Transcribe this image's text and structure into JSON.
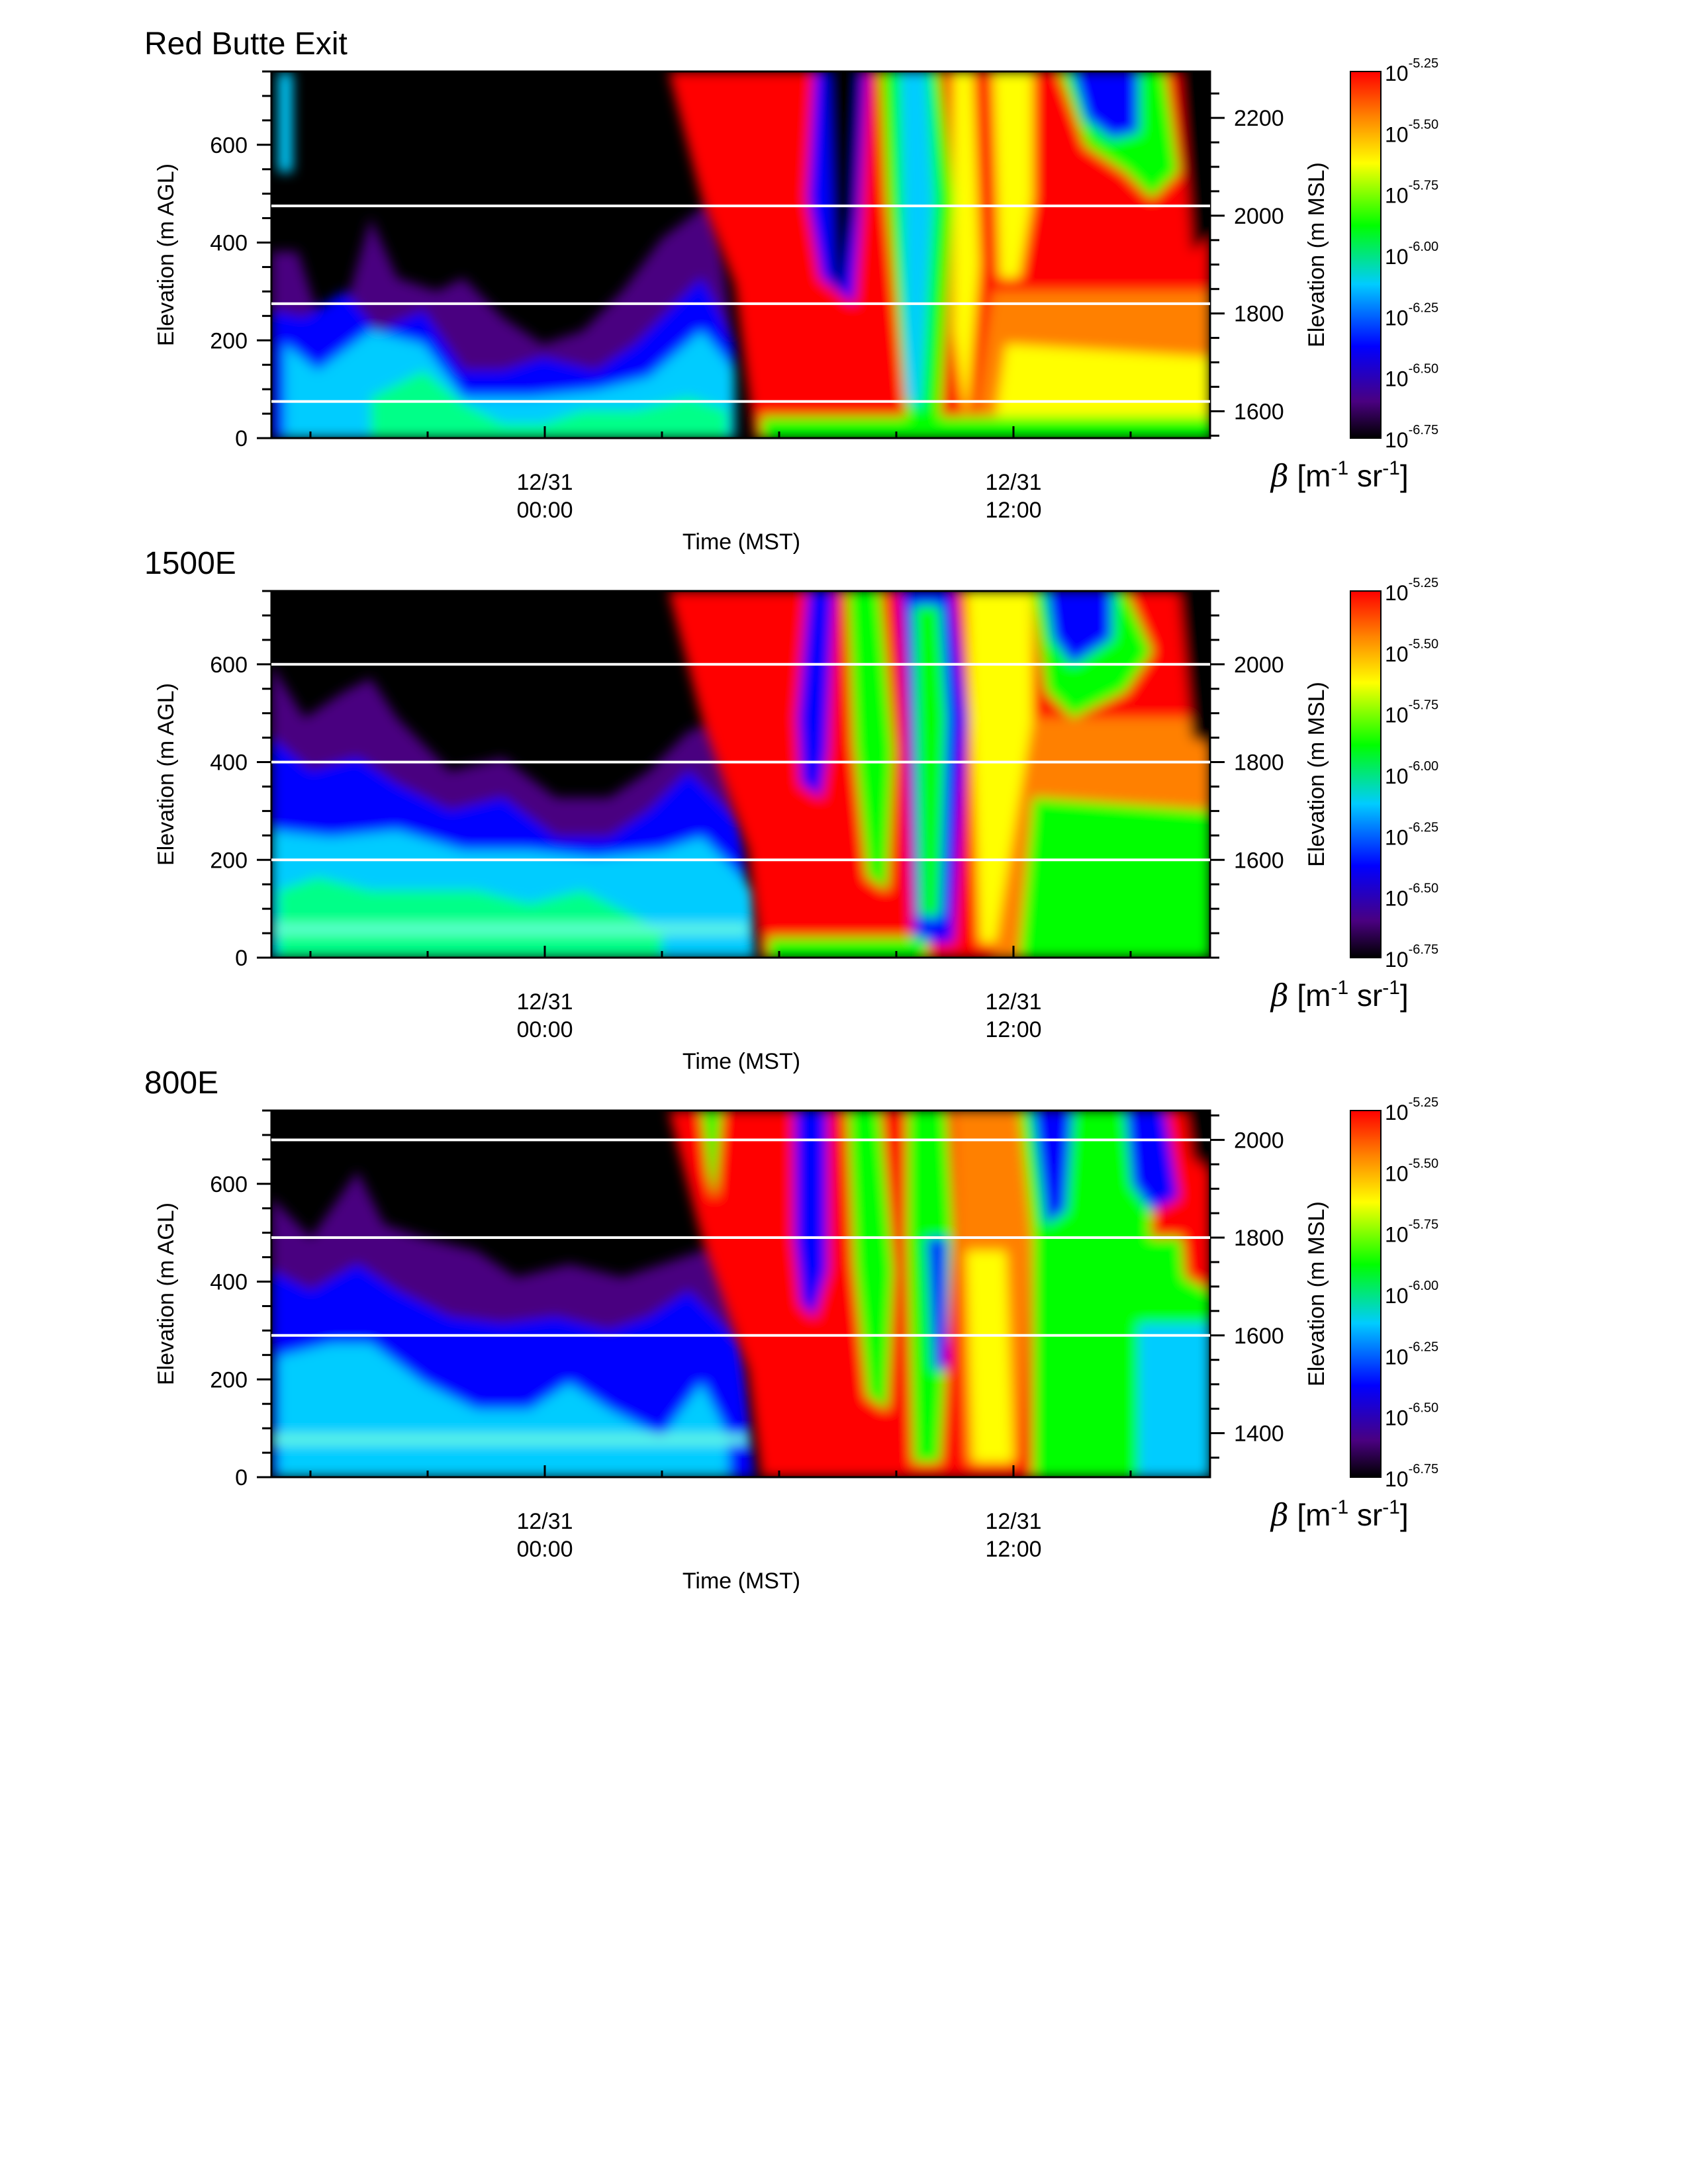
{
  "chart_data": [
    {
      "type": "heatmap",
      "title": "Red Butte Exit",
      "xlabel": "Time (MST)",
      "ylabel": "Elevation (m AGL)",
      "y2label": "Elevation (m MSL)",
      "ylim": [
        0,
        750
      ],
      "yticks": [
        0,
        200,
        400,
        600
      ],
      "y2lim": [
        1545,
        2295
      ],
      "y2ticks": [
        1600,
        1800,
        2000,
        2200
      ],
      "xticks": [
        {
          "line1": "12/31",
          "line2": "00:00"
        },
        {
          "line1": "12/31",
          "line2": "12:00"
        }
      ],
      "hlines_agl": [
        75,
        275,
        475
      ],
      "colorbar": {
        "label": "β [m-1 sr-1]",
        "ticks": [
          {
            "base": "10",
            "exp": "-5.25"
          },
          {
            "base": "10",
            "exp": "-5.50"
          },
          {
            "base": "10",
            "exp": "-5.75"
          },
          {
            "base": "10",
            "exp": "-6.00"
          },
          {
            "base": "10",
            "exp": "-6.25"
          },
          {
            "base": "10",
            "exp": "-6.50"
          },
          {
            "base": "10",
            "exp": "-6.75"
          }
        ]
      }
    },
    {
      "type": "heatmap",
      "title": "1500E",
      "xlabel": "Time (MST)",
      "ylabel": "Elevation (m AGL)",
      "y2label": "Elevation (m MSL)",
      "ylim": [
        0,
        750
      ],
      "yticks": [
        0,
        200,
        400,
        600
      ],
      "y2lim": [
        1400,
        2150
      ],
      "y2ticks": [
        1600,
        1800,
        2000
      ],
      "xticks": [
        {
          "line1": "12/31",
          "line2": "00:00"
        },
        {
          "line1": "12/31",
          "line2": "12:00"
        }
      ],
      "hlines_agl": [
        200,
        400,
        600
      ],
      "colorbar": {
        "label": "β [m-1 sr-1]",
        "ticks": [
          {
            "base": "10",
            "exp": "-5.25"
          },
          {
            "base": "10",
            "exp": "-5.50"
          },
          {
            "base": "10",
            "exp": "-5.75"
          },
          {
            "base": "10",
            "exp": "-6.00"
          },
          {
            "base": "10",
            "exp": "-6.25"
          },
          {
            "base": "10",
            "exp": "-6.50"
          },
          {
            "base": "10",
            "exp": "-6.75"
          }
        ]
      }
    },
    {
      "type": "heatmap",
      "title": "800E",
      "xlabel": "Time (MST)",
      "ylabel": "Elevation (m AGL)",
      "y2label": "Elevation (m MSL)",
      "ylim": [
        0,
        750
      ],
      "yticks": [
        0,
        200,
        400,
        600
      ],
      "y2lim": [
        1310,
        2060
      ],
      "y2ticks": [
        1400,
        1600,
        1800,
        2000
      ],
      "xticks": [
        {
          "line1": "12/31",
          "line2": "00:00"
        },
        {
          "line1": "12/31",
          "line2": "12:00"
        }
      ],
      "hlines_agl": [
        290,
        490,
        690
      ],
      "colorbar": {
        "label": "β [m-1 sr-1]",
        "ticks": [
          {
            "base": "10",
            "exp": "-5.25"
          },
          {
            "base": "10",
            "exp": "-5.50"
          },
          {
            "base": "10",
            "exp": "-5.75"
          },
          {
            "base": "10",
            "exp": "-6.00"
          },
          {
            "base": "10",
            "exp": "-6.25"
          },
          {
            "base": "10",
            "exp": "-6.50"
          },
          {
            "base": "10",
            "exp": "-6.75"
          }
        ]
      }
    }
  ]
}
